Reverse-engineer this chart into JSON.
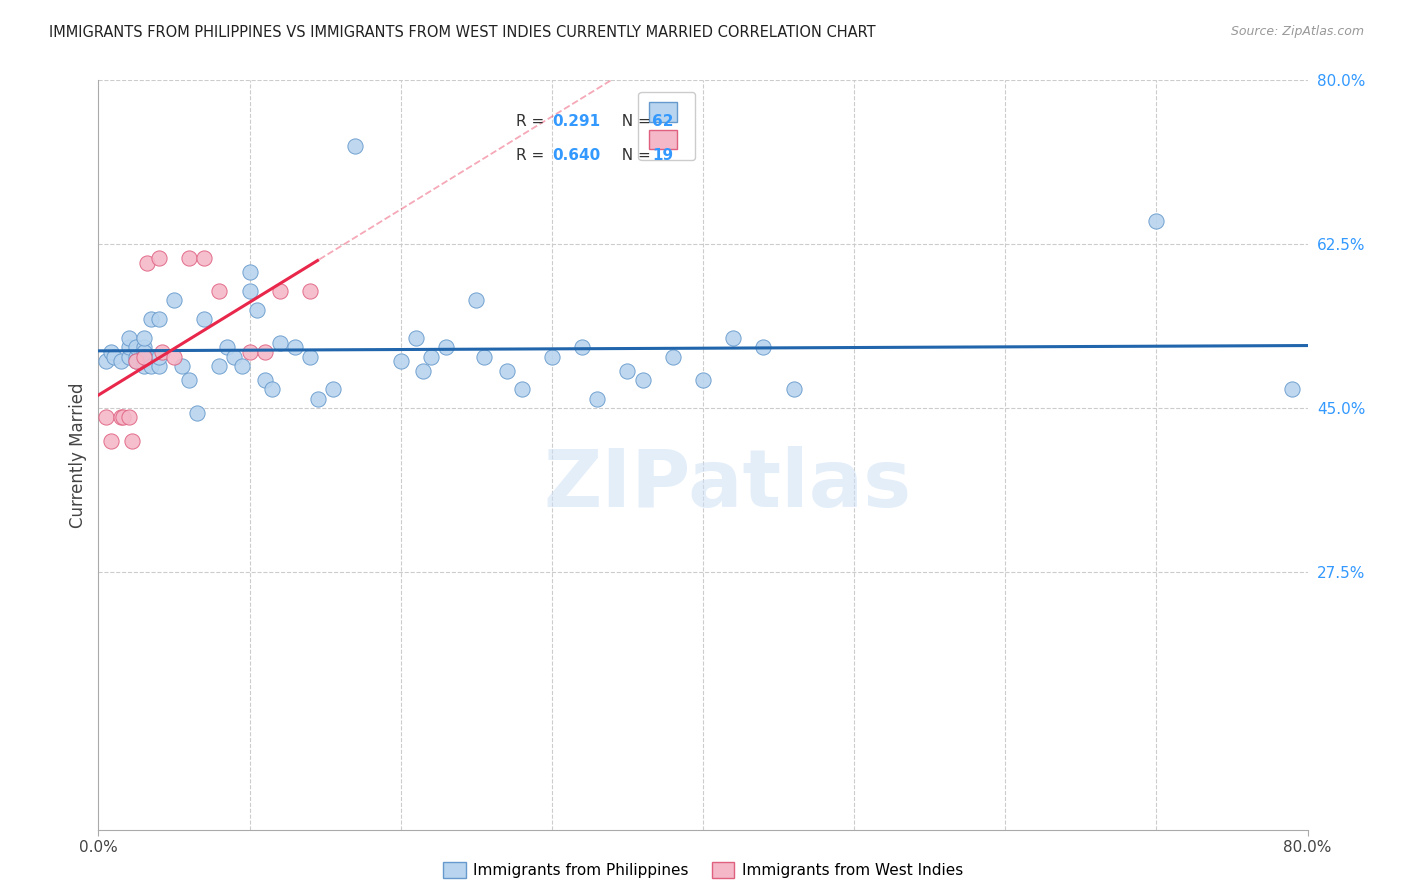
{
  "title": "IMMIGRANTS FROM PHILIPPINES VS IMMIGRANTS FROM WEST INDIES CURRENTLY MARRIED CORRELATION CHART",
  "source": "Source: ZipAtlas.com",
  "ylabel": "Currently Married",
  "legend_R1": "0.291",
  "legend_N1": "62",
  "legend_R2": "0.640",
  "legend_N2": "19",
  "blue_scatter_face": "#b8d4ee",
  "blue_scatter_edge": "#6699cc",
  "pink_scatter_face": "#f4b8c8",
  "pink_scatter_edge": "#e06080",
  "blue_line_color": "#2166ac",
  "pink_line_color": "#e8274b",
  "grid_color": "#cccccc",
  "right_tick_color": "#3399ff",
  "ytick_labels_right": [
    "80.0%",
    "62.5%",
    "45.0%",
    "27.5%"
  ],
  "ytick_vals_right": [
    0.8,
    0.625,
    0.45,
    0.275
  ],
  "watermark": "ZIPatlas",
  "watermark_color": "#cde0f5",
  "philippines_x": [
    0.005,
    0.008,
    0.01,
    0.015,
    0.02,
    0.02,
    0.02,
    0.025,
    0.025,
    0.025,
    0.03,
    0.03,
    0.03,
    0.03,
    0.03,
    0.03,
    0.035,
    0.035,
    0.04,
    0.04,
    0.04,
    0.05,
    0.055,
    0.06,
    0.065,
    0.07,
    0.08,
    0.085,
    0.09,
    0.095,
    0.1,
    0.1,
    0.105,
    0.11,
    0.115,
    0.12,
    0.13,
    0.14,
    0.145,
    0.155,
    0.17,
    0.2,
    0.21,
    0.215,
    0.22,
    0.23,
    0.25,
    0.255,
    0.27,
    0.28,
    0.3,
    0.32,
    0.33,
    0.35,
    0.36,
    0.38,
    0.4,
    0.42,
    0.44,
    0.46,
    0.7,
    0.79
  ],
  "philippines_y": [
    0.5,
    0.51,
    0.505,
    0.5,
    0.505,
    0.515,
    0.525,
    0.505,
    0.515,
    0.5,
    0.5,
    0.515,
    0.51,
    0.495,
    0.505,
    0.525,
    0.545,
    0.495,
    0.545,
    0.495,
    0.505,
    0.565,
    0.495,
    0.48,
    0.445,
    0.545,
    0.495,
    0.515,
    0.505,
    0.495,
    0.575,
    0.595,
    0.555,
    0.48,
    0.47,
    0.52,
    0.515,
    0.505,
    0.46,
    0.47,
    0.73,
    0.5,
    0.525,
    0.49,
    0.505,
    0.515,
    0.565,
    0.505,
    0.49,
    0.47,
    0.505,
    0.515,
    0.46,
    0.49,
    0.48,
    0.505,
    0.48,
    0.525,
    0.515,
    0.47,
    0.65,
    0.47
  ],
  "westindies_x": [
    0.005,
    0.008,
    0.015,
    0.016,
    0.02,
    0.022,
    0.025,
    0.03,
    0.032,
    0.04,
    0.042,
    0.05,
    0.06,
    0.07,
    0.08,
    0.1,
    0.11,
    0.12,
    0.14
  ],
  "westindies_y": [
    0.44,
    0.415,
    0.44,
    0.44,
    0.44,
    0.415,
    0.5,
    0.505,
    0.605,
    0.61,
    0.51,
    0.505,
    0.61,
    0.61,
    0.575,
    0.51,
    0.51,
    0.575,
    0.575
  ]
}
